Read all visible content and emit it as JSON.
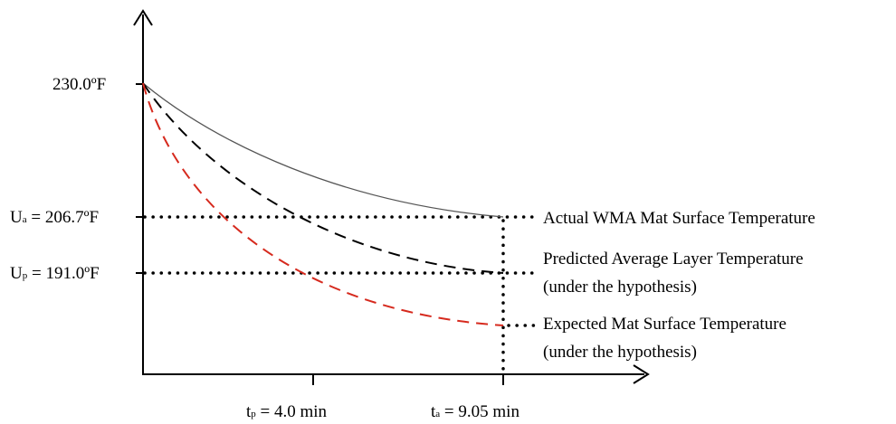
{
  "y_labels": {
    "top": "230.0ºF",
    "ua_symbol": "U",
    "ua_sub": "a",
    "ua_value": " = 206.7ºF",
    "up_symbol": "U",
    "up_sub": "p",
    "up_value": " = 191.0ºF"
  },
  "x_labels": {
    "tp_symbol": "t",
    "tp_sub": "p",
    "tp_value": " = 4.0 min",
    "ta_symbol": "t",
    "ta_sub": "a",
    "ta_value": " = 9.05 min"
  },
  "annotations": {
    "actual": "Actual WMA Mat Surface Temperature",
    "predicted_line1": "Predicted Average Layer Temperature",
    "predicted_line2": "(under the hypothesis)",
    "expected_line1": "Expected Mat Surface Temperature",
    "expected_line2": "(under the hypothesis)"
  },
  "colors": {
    "axis": "#000000",
    "actual_curve": "#555555",
    "predicted_curve": "#000000",
    "expected_curve": "#d62a1e"
  }
}
